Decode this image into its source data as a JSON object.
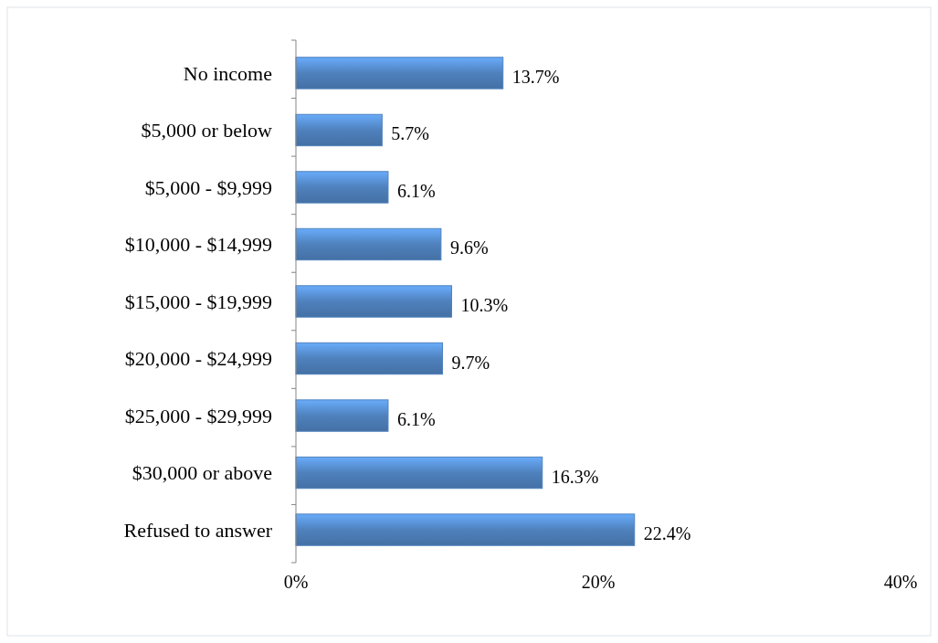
{
  "chart_data": {
    "type": "bar",
    "orientation": "horizontal",
    "categories": [
      "No income",
      "$5,000 or below",
      "$5,000 - $9,999",
      "$10,000 - $14,999",
      "$15,000 - $19,999",
      "$20,000 - $24,999",
      "$25,000 - $29,999",
      "$30,000 or above",
      "Refused to answer"
    ],
    "values": [
      13.7,
      5.7,
      6.1,
      9.6,
      10.3,
      9.7,
      6.1,
      16.3,
      22.4
    ],
    "value_labels": [
      "13.7%",
      "5.7%",
      "6.1%",
      "9.6%",
      "10.3%",
      "9.7%",
      "6.1%",
      "16.3%",
      "22.4%"
    ],
    "color": "#4f81bd",
    "xlim": [
      0,
      40
    ],
    "xticks": [
      {
        "value": 0,
        "label": "0%"
      },
      {
        "value": 20,
        "label": "20%"
      },
      {
        "value": 40,
        "label": "40%"
      }
    ],
    "grid": false
  }
}
